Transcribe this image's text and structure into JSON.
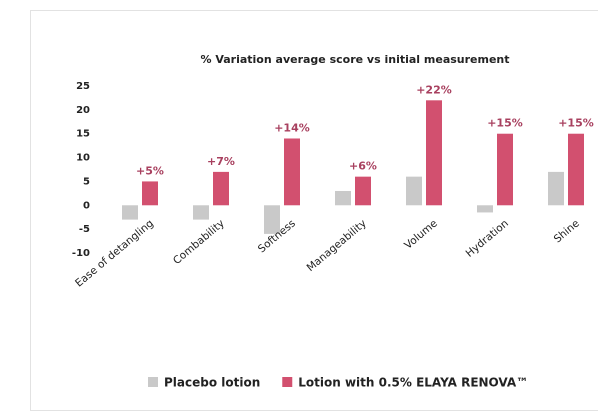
{
  "chart_data": {
    "type": "bar",
    "title": "% Variation average score vs initial measurement",
    "categories": [
      "Ease of detangling",
      "Combability",
      "Softness",
      "Manageability",
      "Volume",
      "Hydration",
      "Shine"
    ],
    "series": [
      {
        "name": "Placebo lotion",
        "color": "#c9c9c9",
        "values": [
          -3,
          -3,
          -6,
          3,
          6,
          -1.5,
          7
        ]
      },
      {
        "name": "Lotion with 0.5% ELAYA RENOVA™",
        "color": "#d2506f",
        "values": [
          5,
          7,
          14,
          6,
          22,
          15,
          15
        ],
        "value_labels": [
          "+5%",
          "+7%",
          "+14%",
          "+6%",
          "+22%",
          "+15%",
          "+15%"
        ]
      }
    ],
    "ylim": [
      -10,
      25
    ],
    "yticks": [
      -10,
      -5,
      0,
      5,
      10,
      15,
      20,
      25
    ]
  }
}
